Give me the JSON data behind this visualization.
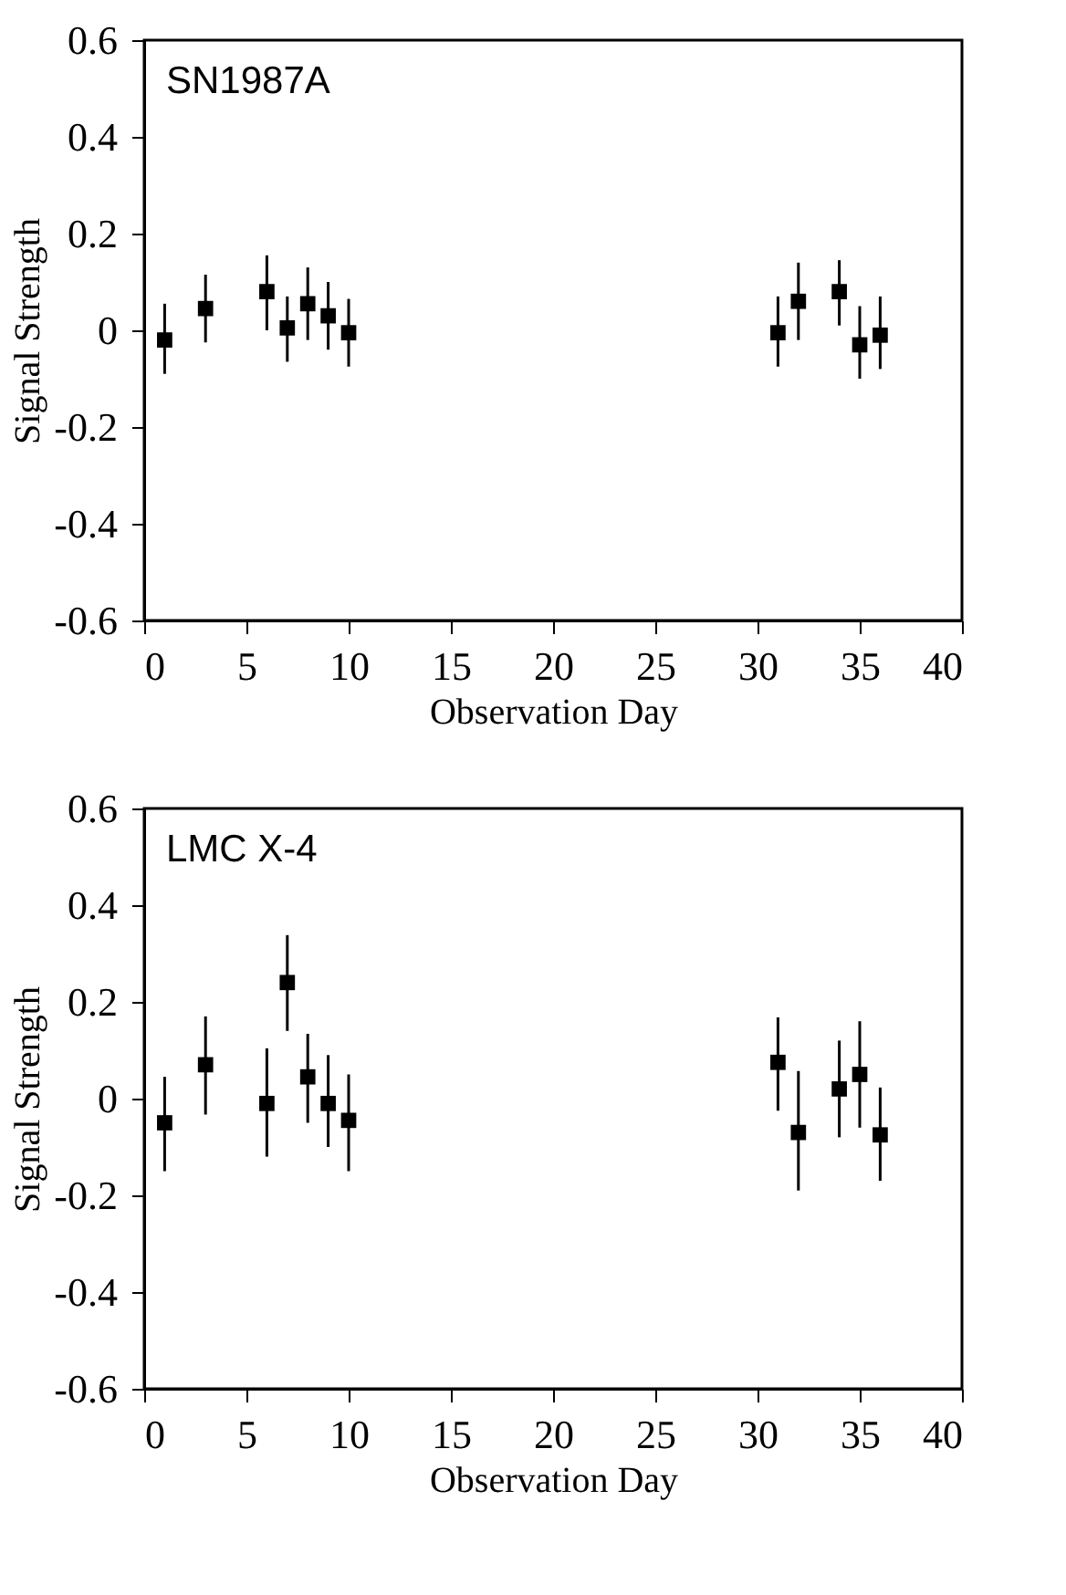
{
  "chart_data": [
    {
      "type": "scatter",
      "annotations": [
        "SN1987A"
      ],
      "xlabel": "Observation Day",
      "ylabel": "Signal Strength",
      "marker": "square",
      "grid": false,
      "x": [
        1,
        3,
        6,
        7,
        8,
        9,
        10,
        31,
        32,
        34,
        35,
        36
      ],
      "series": [
        {
          "color": "#000000",
          "values": [
            -0.02,
            0.045,
            0.08,
            0.005,
            0.055,
            0.03,
            -0.005,
            -0.005,
            0.06,
            0.08,
            -0.03,
            -0.01
          ],
          "errors": [
            [
              -0.09,
              0.055
            ],
            [
              -0.025,
              0.115
            ],
            [
              0,
              0.155
            ],
            [
              -0.065,
              0.07
            ],
            [
              -0.02,
              0.13
            ],
            [
              -0.04,
              0.1
            ],
            [
              -0.075,
              0.065
            ],
            [
              -0.075,
              0.07
            ],
            [
              -0.02,
              0.14
            ],
            [
              0.01,
              0.145
            ],
            [
              -0.1,
              0.05
            ],
            [
              -0.08,
              0.07
            ]
          ]
        }
      ],
      "xlim": [
        0,
        40
      ],
      "xticks": [
        0,
        5,
        10,
        15,
        20,
        25,
        30,
        35,
        40
      ],
      "ylim": [
        -0.6,
        0.6
      ],
      "yticks": [
        -0.6,
        -0.4,
        -0.2,
        0,
        0.2,
        0.4,
        0.6
      ]
    },
    {
      "type": "scatter",
      "annotations": [
        "LMC X-4"
      ],
      "xlabel": "Observation Day",
      "ylabel": "Signal Strength",
      "marker": "square",
      "grid": false,
      "x": [
        1,
        3,
        6,
        7,
        8,
        9,
        10,
        31,
        32,
        34,
        35,
        36
      ],
      "series": [
        {
          "color": "#000000",
          "values": [
            -0.05,
            0.07,
            -0.01,
            0.24,
            0.045,
            -0.01,
            -0.045,
            0.075,
            -0.07,
            0.02,
            0.05,
            -0.075
          ],
          "errors": [
            [
              -0.15,
              0.045
            ],
            [
              -0.033,
              0.17
            ],
            [
              -0.12,
              0.104
            ],
            [
              0.14,
              0.338
            ],
            [
              -0.05,
              0.134
            ],
            [
              -0.1,
              0.09
            ],
            [
              -0.15,
              0.05
            ],
            [
              -0.025,
              0.168
            ],
            [
              -0.19,
              0.057
            ],
            [
              -0.08,
              0.12
            ],
            [
              -0.06,
              0.16
            ],
            [
              -0.17,
              0.023
            ]
          ]
        }
      ],
      "xlim": [
        0,
        40
      ],
      "xticks": [
        0,
        5,
        10,
        15,
        20,
        25,
        30,
        35,
        40
      ],
      "ylim": [
        -0.6,
        0.6
      ],
      "yticks": [
        -0.6,
        -0.4,
        -0.2,
        0,
        0.2,
        0.4,
        0.6
      ]
    }
  ]
}
